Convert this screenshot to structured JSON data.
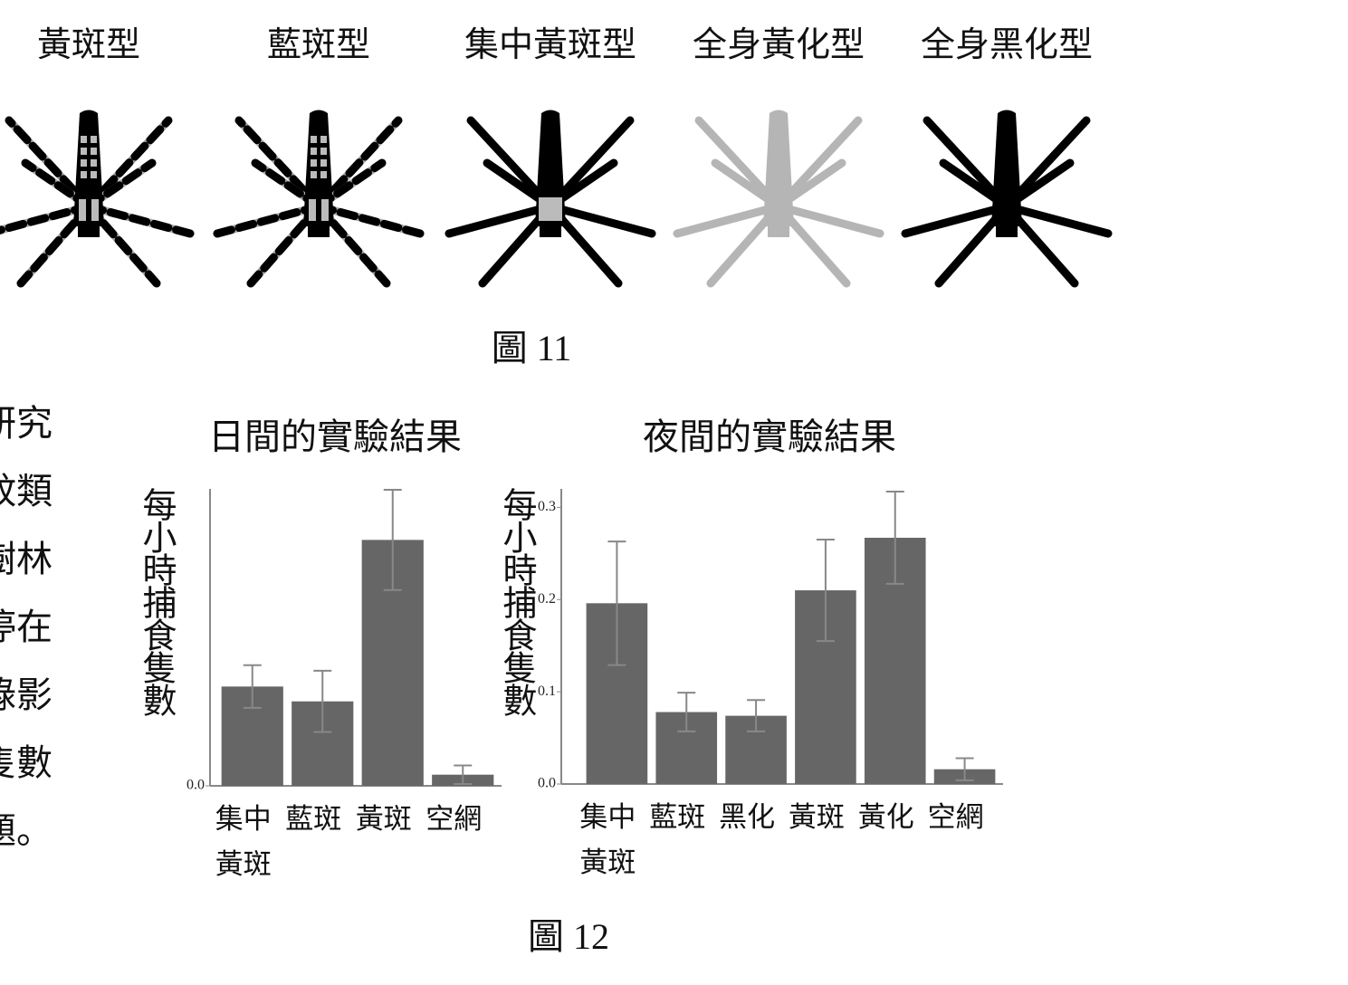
{
  "figure11": {
    "labels": [
      "黃斑型",
      "藍斑型",
      "集中黃斑型",
      "全身黃化型",
      "全身黑化型"
    ],
    "caption": "圖 11"
  },
  "body_text": {
    "lines": [
      "研究",
      "蚊類",
      "樹林",
      "停在",
      "錄影",
      "隻數",
      "題。"
    ]
  },
  "chart_data": [
    {
      "type": "bar",
      "title": "日間的實驗結果",
      "y_label": "每小時捕食隻數",
      "categories": [
        "集中黃斑",
        "藍斑",
        "黃斑",
        "空網"
      ],
      "values": [
        0.107,
        0.091,
        0.265,
        0.012
      ],
      "errors": [
        0.023,
        0.033,
        0.054,
        0.01
      ],
      "color": "#666666",
      "ylim": [
        0,
        0.32
      ],
      "yticks": [
        {
          "value": 0,
          "label": "0.0"
        }
      ]
    },
    {
      "type": "bar",
      "title": "夜間的實驗結果",
      "y_label": "每小時捕食隻數",
      "categories": [
        "集中黃斑",
        "藍斑",
        "黑化",
        "黃斑",
        "黃化",
        "空網"
      ],
      "values": [
        0.196,
        0.078,
        0.074,
        0.21,
        0.267,
        0.016
      ],
      "errors": [
        0.067,
        0.021,
        0.017,
        0.055,
        0.05,
        0.012
      ],
      "color": "#666666",
      "ylim": [
        0,
        0.32
      ],
      "yticks": [
        {
          "value": 0,
          "label": "0.0"
        },
        0.1,
        0.2,
        0.3
      ]
    }
  ],
  "figure12": {
    "caption": "圖 12"
  }
}
